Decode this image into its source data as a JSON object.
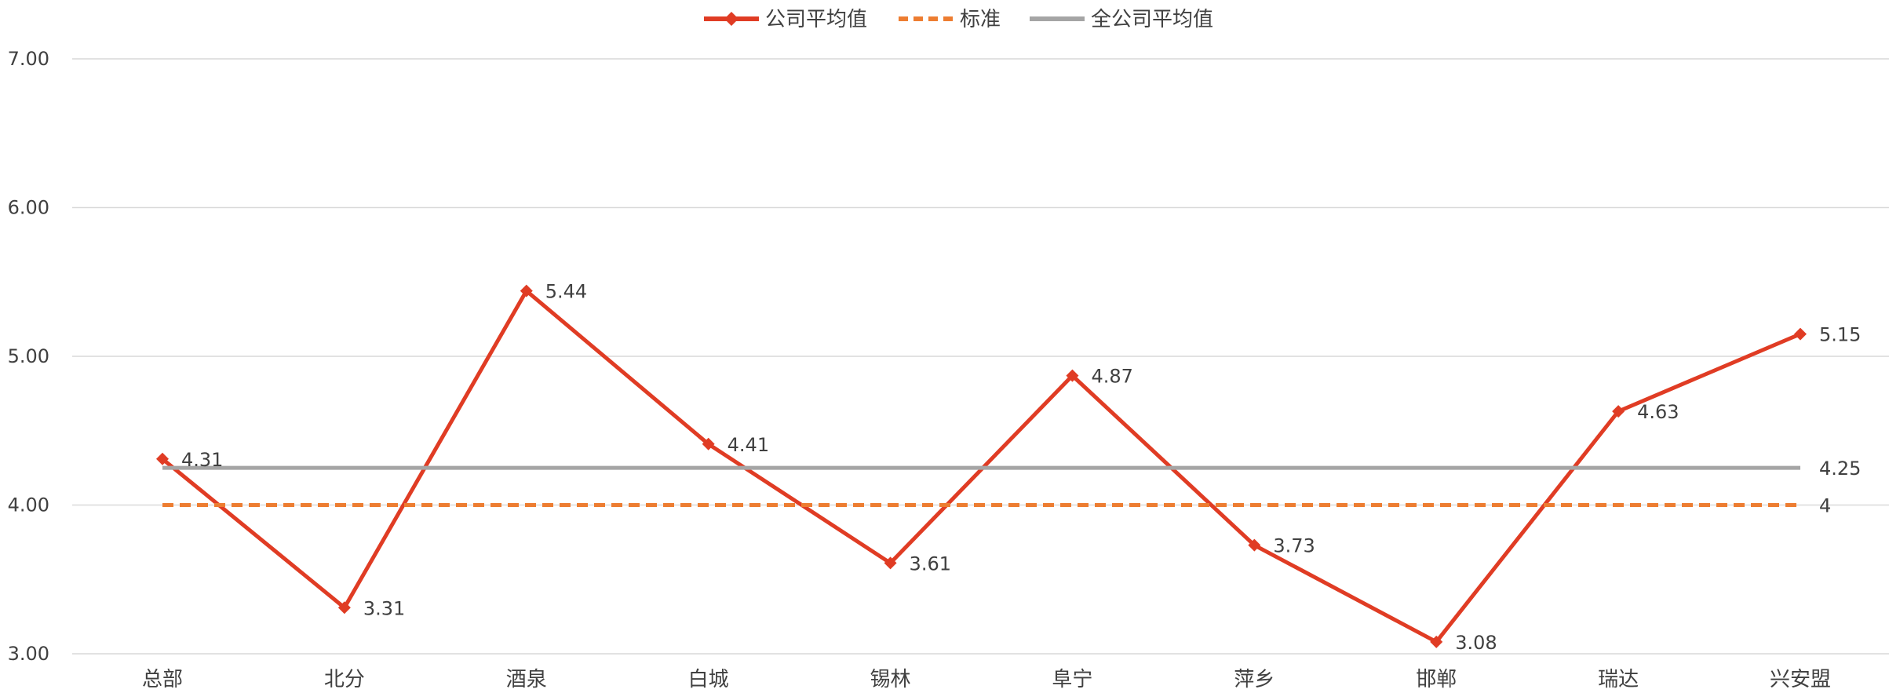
{
  "chart_data": {
    "type": "line",
    "categories": [
      "总部",
      "北分",
      "酒泉",
      "白城",
      "锡林",
      "阜宁",
      "萍乡",
      "邯郸",
      "瑞达",
      "兴安盟"
    ],
    "series": [
      {
        "name": "公司平均值",
        "values": [
          4.31,
          3.31,
          5.44,
          4.41,
          3.61,
          4.87,
          3.73,
          3.08,
          4.63,
          5.15
        ],
        "color": "#e03c24",
        "style": "solid",
        "marker": "diamond",
        "data_labels": [
          "4.31",
          "3.31",
          "5.44",
          "4.41",
          "3.61",
          "4.87",
          "3.73",
          "3.08",
          "4.63",
          "5.15"
        ]
      },
      {
        "name": "标准",
        "values": [
          4,
          4,
          4,
          4,
          4,
          4,
          4,
          4,
          4,
          4
        ],
        "color": "#ed7d31",
        "style": "dashed",
        "end_label": "4"
      },
      {
        "name": "全公司平均值",
        "values": [
          4.25,
          4.25,
          4.25,
          4.25,
          4.25,
          4.25,
          4.25,
          4.25,
          4.25,
          4.25
        ],
        "color": "#a5a5a5",
        "style": "solid",
        "end_label": "4.25"
      }
    ],
    "ylim": [
      3,
      7
    ],
    "yticks": [
      "3.00",
      "4.00",
      "5.00",
      "6.00",
      "7.00"
    ],
    "grid": true,
    "legend_position": "top-center",
    "title": "",
    "xlabel": "",
    "ylabel": ""
  }
}
